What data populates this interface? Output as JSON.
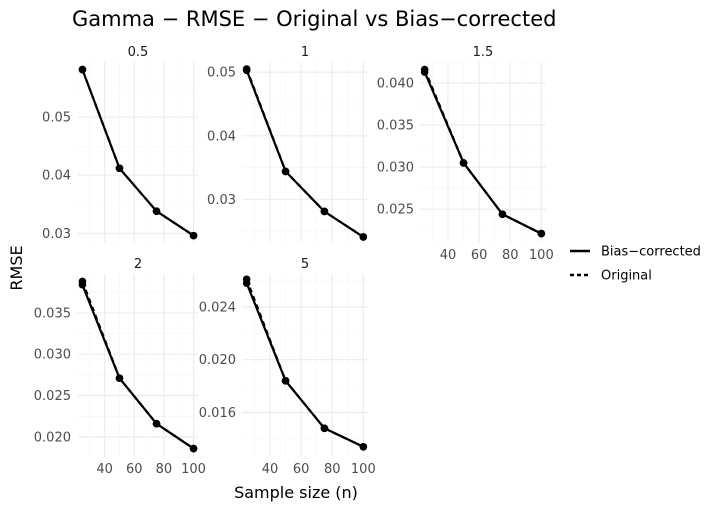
{
  "chart_data": {
    "type": "line",
    "title": "Gamma − RMSE − Original vs Bias−corrected",
    "xlabel": "Sample size (n)",
    "ylabel": "RMSE",
    "x": [
      25,
      50,
      75,
      100
    ],
    "x_ticks": [
      "40",
      "60",
      "80",
      "100"
    ],
    "legend": {
      "placement": "right",
      "entries": [
        {
          "name": "Bias−corrected",
          "linetype": "solid"
        },
        {
          "name": "Original",
          "linetype": "dashed"
        }
      ]
    },
    "panels": [
      {
        "label": "0.5",
        "ylim": [
          0.0285,
          0.0595
        ],
        "y_ticks": [
          "0.03",
          "0.04",
          "0.05"
        ],
        "series": [
          {
            "name": "Bias−corrected",
            "values": [
              0.0582,
              0.0412,
              0.0338,
              0.0296
            ]
          },
          {
            "name": "Original",
            "values": [
              0.0582,
              0.0412,
              0.0338,
              0.0296
            ]
          }
        ]
      },
      {
        "label": "1",
        "ylim": [
          0.0233,
          0.0516
        ],
        "y_ticks": [
          "0.03",
          "0.04",
          "0.05"
        ],
        "series": [
          {
            "name": "Bias−corrected",
            "values": [
              0.0503,
              0.0344,
              0.0281,
              0.0241
            ]
          },
          {
            "name": "Original",
            "values": [
              0.0505,
              0.0344,
              0.0281,
              0.0241
            ]
          }
        ]
      },
      {
        "label": "1.5",
        "ylim": [
          0.0211,
          0.0425
        ],
        "y_ticks": [
          "0.025",
          "0.030",
          "0.035",
          "0.040"
        ],
        "series": [
          {
            "name": "Bias−corrected",
            "values": [
              0.0413,
              0.0305,
              0.0244,
              0.0221
            ]
          },
          {
            "name": "Original",
            "values": [
              0.0416,
              0.0305,
              0.0244,
              0.0221
            ]
          }
        ]
      },
      {
        "label": "2",
        "ylim": [
          0.0177,
          0.0397
        ],
        "y_ticks": [
          "0.020",
          "0.025",
          "0.030",
          "0.035"
        ],
        "series": [
          {
            "name": "Bias−corrected",
            "values": [
              0.0384,
              0.0271,
              0.0216,
              0.0186
            ]
          },
          {
            "name": "Original",
            "values": [
              0.0388,
              0.0271,
              0.0216,
              0.0186
            ]
          }
        ]
      },
      {
        "label": "5",
        "ylim": [
          0.0127,
          0.0265
        ],
        "y_ticks": [
          "0.016",
          "0.020",
          "0.024"
        ],
        "series": [
          {
            "name": "Bias−corrected",
            "values": [
              0.0258,
              0.0184,
              0.0148,
              0.0134
            ]
          },
          {
            "name": "Original",
            "values": [
              0.0261,
              0.0184,
              0.0148,
              0.0134
            ]
          }
        ]
      }
    ]
  }
}
